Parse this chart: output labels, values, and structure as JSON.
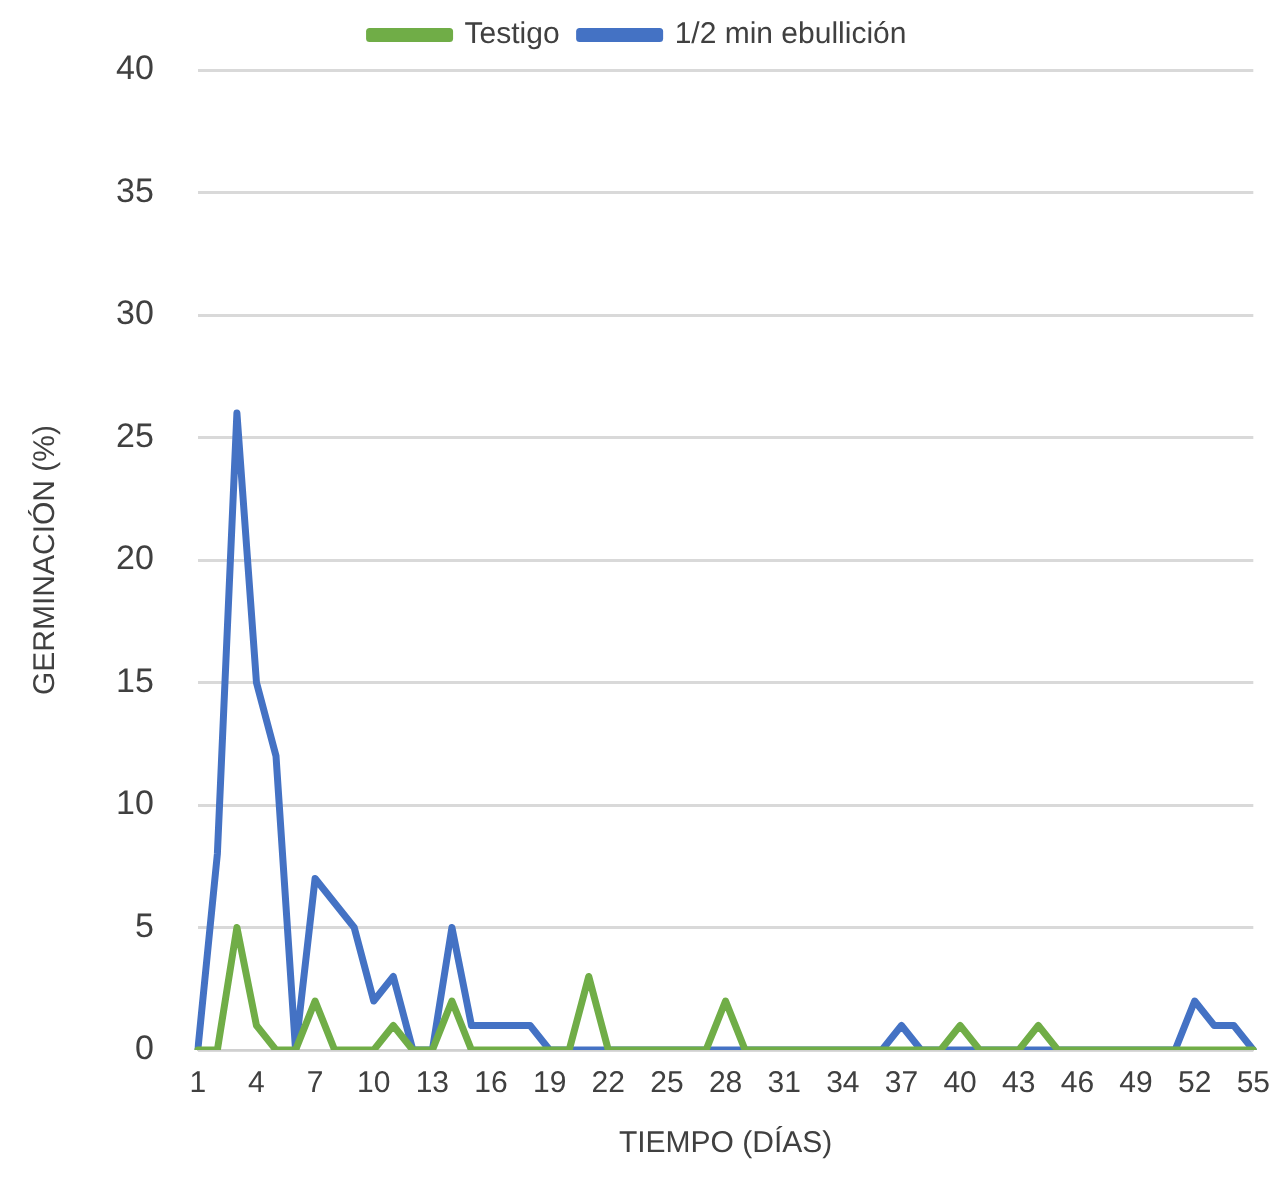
{
  "chart_data": {
    "type": "line",
    "xlabel": "TIEMPO (DÍAS)",
    "ylabel": "GERMINACIÓN (%)",
    "categories": [
      "1",
      null,
      null,
      "4",
      null,
      null,
      "7",
      null,
      null,
      "10",
      null,
      null,
      "13",
      null,
      null,
      "16",
      null,
      null,
      "19",
      null,
      null,
      "22",
      null,
      null,
      "25",
      null,
      null,
      "28",
      null,
      null,
      "31",
      null,
      null,
      "34",
      null,
      null,
      "37",
      null,
      null,
      "40",
      null,
      null,
      "43",
      null,
      null,
      "46",
      null,
      null,
      "49",
      null,
      null,
      "52",
      null,
      null,
      "55"
    ],
    "series": [
      {
        "name": "Testigo",
        "color": "#70ad47",
        "values": [
          0,
          0,
          5,
          1,
          0,
          0,
          2,
          0,
          0,
          0,
          1,
          0,
          0,
          2,
          0,
          0,
          0,
          0,
          0,
          0,
          3,
          0,
          0,
          0,
          0,
          0,
          0,
          2,
          0,
          0,
          0,
          0,
          0,
          0,
          0,
          0,
          0,
          0,
          0,
          1,
          0,
          0,
          0,
          1,
          0,
          0,
          0,
          0,
          0,
          0,
          0,
          0,
          0,
          0,
          0
        ]
      },
      {
        "name": "1/2 min ebullición",
        "color": "#4472c4",
        "values": [
          0,
          8,
          26,
          15,
          12,
          0,
          7,
          6,
          5,
          2,
          3,
          0,
          0,
          5,
          1,
          1,
          1,
          1,
          0,
          0,
          0,
          0,
          0,
          0,
          0,
          0,
          0,
          0,
          0,
          0,
          0,
          0,
          0,
          0,
          0,
          0,
          1,
          0,
          0,
          0,
          0,
          0,
          0,
          0,
          0,
          0,
          0,
          0,
          0,
          0,
          0,
          2,
          1,
          1,
          0
        ]
      }
    ],
    "ylim": [
      0,
      40
    ],
    "yticks": [
      0,
      5,
      10,
      15,
      20,
      25,
      30,
      35,
      40
    ],
    "grid": "y",
    "legend": "top",
    "marker": "none",
    "line_style": "solid"
  }
}
